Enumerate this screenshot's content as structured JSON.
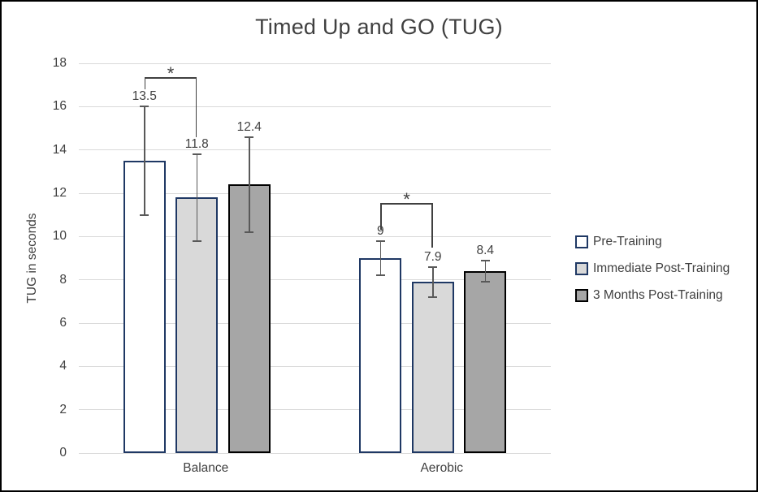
{
  "chart_data": {
    "type": "bar",
    "title": "Timed Up and GO (TUG)",
    "ylabel": "TUG in seconds",
    "xlabel": "",
    "categories": [
      "Balance",
      "Aerobic"
    ],
    "series": [
      {
        "name": "Pre-Training",
        "values": [
          13.5,
          9
        ],
        "value_labels": [
          "13.5",
          "9"
        ],
        "errors": [
          2.5,
          0.8
        ],
        "fill": "#ffffff",
        "border": "#1f3864"
      },
      {
        "name": "Immediate Post-Training",
        "values": [
          11.8,
          7.9
        ],
        "value_labels": [
          "11.8",
          "7.9"
        ],
        "errors": [
          2.0,
          0.7
        ],
        "fill": "#d9d9d9",
        "border": "#1f3864"
      },
      {
        "name": "3 Months Post-Training",
        "values": [
          12.4,
          8.4
        ],
        "value_labels": [
          "12.4",
          "8.4"
        ],
        "errors": [
          2.2,
          0.5
        ],
        "fill": "#a6a6a6",
        "border": "#000000"
      }
    ],
    "ylim": [
      0,
      18
    ],
    "ytick_step": 2,
    "ytick_labels": [
      "0",
      "2",
      "4",
      "6",
      "8",
      "10",
      "12",
      "14",
      "16",
      "18"
    ],
    "grid": true,
    "legend_position": "right",
    "significance_brackets": [
      {
        "category_index": 0,
        "series_pair": [
          0,
          1
        ],
        "label": "*",
        "top_value": 17.35,
        "left_drop_value": 16.8,
        "right_drop_value": 14.6
      },
      {
        "category_index": 1,
        "series_pair": [
          0,
          1
        ],
        "label": "*",
        "top_value": 11.55,
        "left_drop_value": 10.3,
        "right_drop_value": 9.5
      }
    ],
    "colors": {
      "text": "#404040",
      "gridline": "#d9d9d9",
      "error_bar": "#595959",
      "bracket": "#404040",
      "frame_border": "#000000",
      "background": "#ffffff"
    }
  }
}
